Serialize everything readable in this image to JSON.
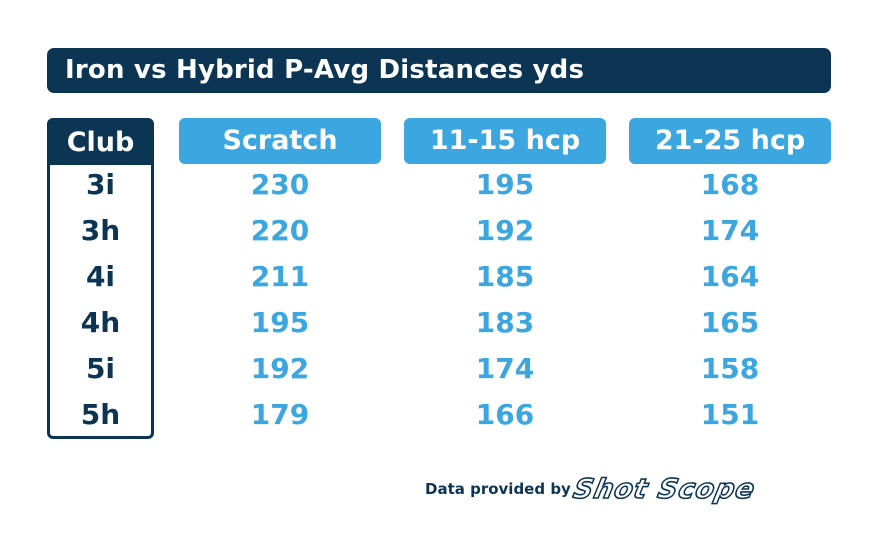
{
  "title": "Iron vs Hybrid P-Avg Distances yds",
  "club_header": "Club",
  "clubs": [
    "3i",
    "3h",
    "4i",
    "4h",
    "5i",
    "5h"
  ],
  "columns": [
    "Scratch",
    "11-15 hcp",
    "21-25 hcp"
  ],
  "footer": {
    "text": "Data provided by",
    "logo_text": "Shot Scope"
  },
  "colors": {
    "navy": "#0c3553",
    "accent": "#3ba6df"
  },
  "chart_data": {
    "type": "table",
    "title": "Iron vs Hybrid P-Avg Distances yds",
    "categories": [
      "3i",
      "3h",
      "4i",
      "4h",
      "5i",
      "5h"
    ],
    "series": [
      {
        "name": "Scratch",
        "values": [
          230,
          220,
          211,
          195,
          192,
          179
        ]
      },
      {
        "name": "11-15 hcp",
        "values": [
          195,
          192,
          185,
          183,
          174,
          166
        ]
      },
      {
        "name": "21-25 hcp",
        "values": [
          168,
          174,
          164,
          165,
          158,
          151
        ]
      }
    ]
  }
}
